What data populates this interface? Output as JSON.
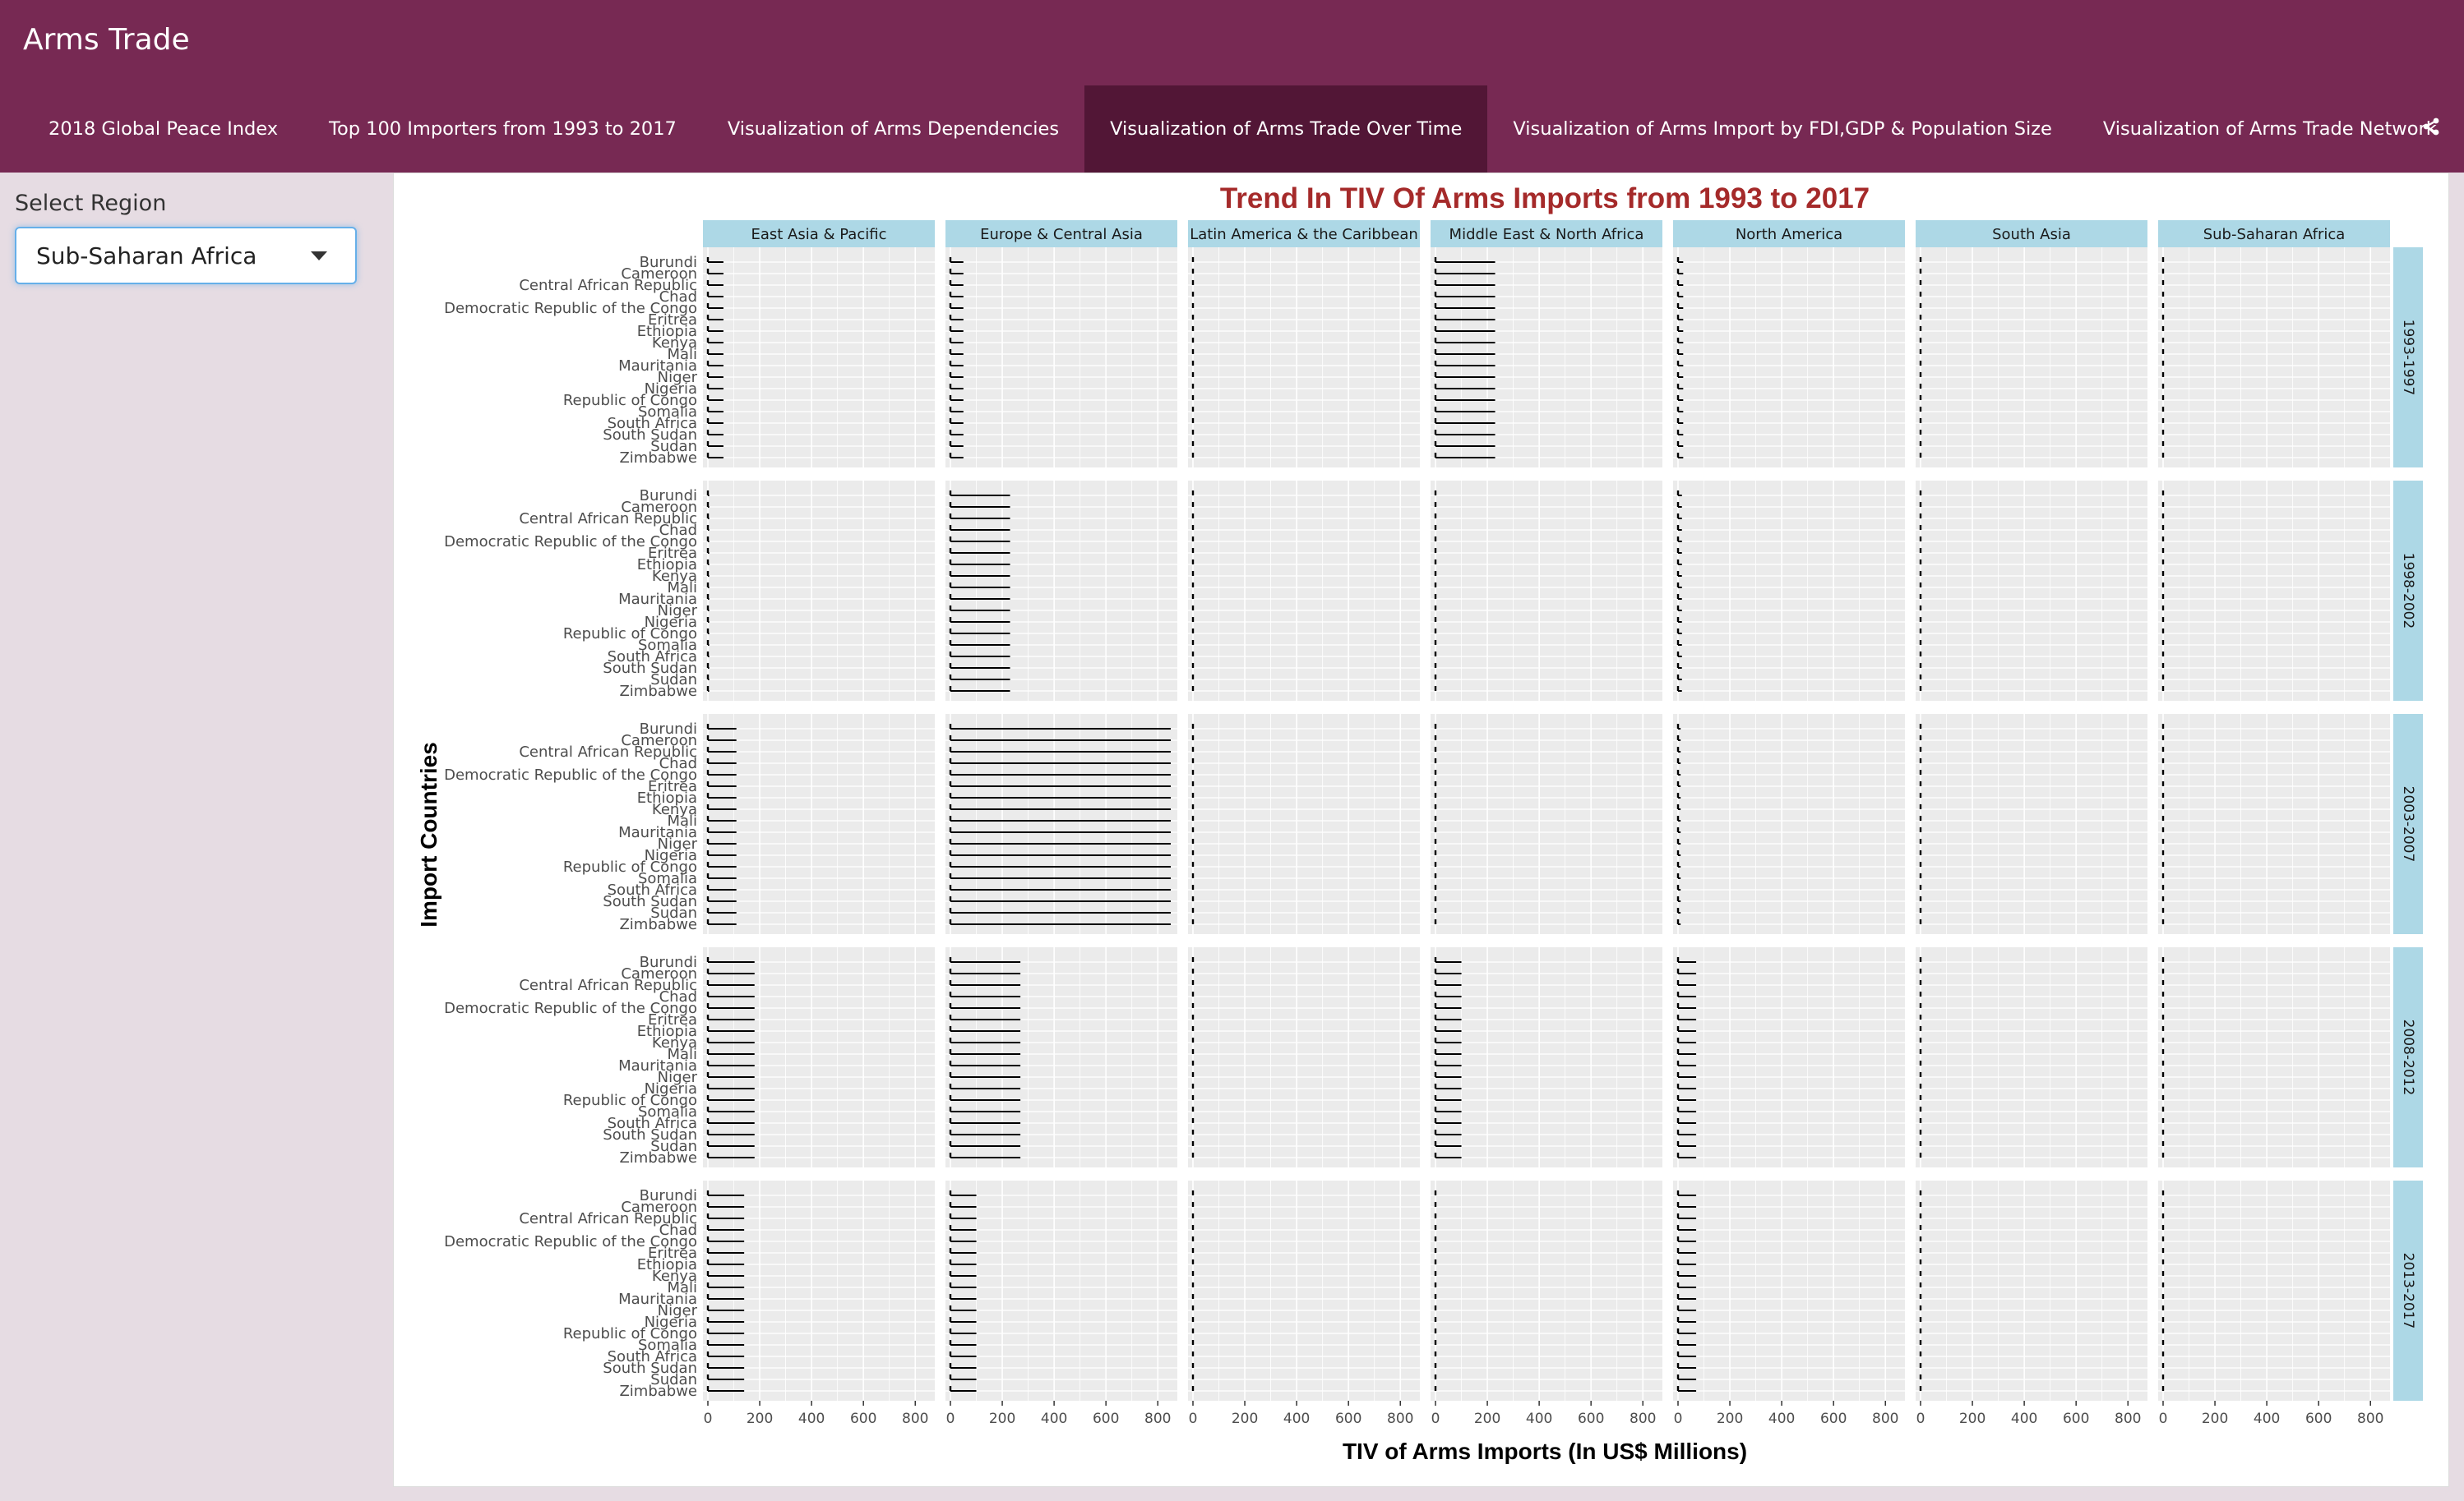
{
  "app": {
    "title": "Arms Trade"
  },
  "tabs": [
    {
      "label": "2018 Global Peace Index"
    },
    {
      "label": "Top 100 Importers from 1993 to 2017"
    },
    {
      "label": "Visualization of Arms Dependencies"
    },
    {
      "label": "Visualization of Arms Trade Over Time",
      "active": true
    },
    {
      "label": "Visualization of Arms Import by FDI,GDP & Population Size"
    },
    {
      "label": "Visualization of Arms Trade Network"
    }
  ],
  "share_icon": "share-icon",
  "sidebar": {
    "label": "Select Region",
    "selected": "Sub-Saharan Africa",
    "caret_icon": "caret-down-icon"
  },
  "colors": {
    "header": "#772953",
    "active_tab": "#521636",
    "strip": "#add8e6",
    "title": "#a52a2a",
    "panel": "#ebebeb"
  },
  "chart_data": {
    "type": "ridgeline",
    "title": "Trend In TIV Of Arms Imports from 1993 to 2017",
    "xlabel": "TIV of Arms Imports (In US$ Millions)",
    "ylabel": "Import Countries",
    "x_ticks": [
      "0",
      "200",
      "400",
      "600",
      "800"
    ],
    "xlim": [
      0,
      850
    ],
    "columns": [
      "East Asia & Pacific",
      "Europe & Central Asia",
      "Latin America & the Caribbean",
      "Middle East & North Africa",
      "North America",
      "South Asia",
      "Sub-Saharan Africa"
    ],
    "rows": [
      "1993-1997",
      "1998-2002",
      "2003-2007",
      "2008-2012",
      "2013-2017"
    ],
    "countries": [
      "Zimbabwe",
      "Sudan",
      "South Sudan",
      "South Africa",
      "Somalia",
      "Republic of Congo",
      "Nigeria",
      "Niger",
      "Mauritania",
      "Mali",
      "Kenya",
      "Ethiopia",
      "Eritrea",
      "Democratic Republic of the Congo",
      "Chad",
      "Central African Republic",
      "Cameroon",
      "Burundi"
    ],
    "line_max": [
      [
        60,
        50,
        0,
        230,
        20,
        0,
        0
      ],
      [
        5,
        230,
        0,
        0,
        15,
        0,
        0
      ],
      [
        110,
        850,
        0,
        0,
        10,
        0,
        0
      ],
      [
        180,
        270,
        0,
        100,
        70,
        0,
        0
      ],
      [
        140,
        100,
        0,
        0,
        70,
        0,
        0
      ]
    ],
    "row_extents": [
      [
        [
          0,
          5,
          3,
          4,
          0
        ],
        [
          0,
          0,
          0,
          0,
          0
        ],
        [
          5,
          7,
          7,
          0,
          6
        ],
        [
          0,
          0,
          0,
          0,
          0
        ],
        [
          0,
          0,
          0,
          0,
          0
        ],
        [
          0,
          0,
          0,
          0,
          0
        ],
        [
          0,
          0,
          0,
          0,
          0
        ]
      ],
      [
        [
          0,
          0,
          0,
          0,
          0
        ],
        [
          0,
          0,
          0,
          0,
          0
        ],
        [
          0,
          0,
          0,
          0,
          0
        ],
        [
          0,
          0,
          0,
          0,
          0
        ],
        [
          0,
          0,
          0,
          0,
          0
        ],
        [
          0,
          0,
          0,
          0,
          0
        ],
        [
          0,
          0,
          0,
          0,
          0
        ]
      ],
      [
        [
          0,
          0,
          0,
          0,
          0
        ],
        [
          0,
          0,
          0,
          0,
          0
        ],
        [
          0,
          0,
          0,
          0,
          0
        ],
        [
          0,
          0,
          0,
          0,
          0
        ],
        [
          0,
          0,
          0,
          0,
          0
        ],
        [
          0,
          0,
          0,
          0,
          0
        ],
        [
          0,
          0,
          0,
          0,
          0
        ]
      ],
      [
        [
          0,
          0,
          0,
          0,
          0
        ],
        [
          0,
          0,
          0,
          0,
          0
        ],
        [
          0,
          0,
          0,
          0,
          0
        ],
        [
          0,
          0,
          0,
          0,
          0
        ],
        [
          0,
          0,
          0,
          0,
          0
        ],
        [
          0,
          0,
          0,
          0,
          0
        ],
        [
          0,
          0,
          0,
          0,
          0
        ]
      ],
      [
        [
          0,
          0,
          0,
          0,
          0
        ],
        [
          0,
          0,
          0,
          0,
          0
        ],
        [
          0,
          0,
          0,
          0,
          0
        ],
        [
          0,
          0,
          0,
          0,
          0
        ],
        [
          0,
          0,
          0,
          0,
          0
        ],
        [
          0,
          0,
          0,
          0,
          0
        ],
        [
          0,
          0,
          0,
          0,
          0
        ]
      ]
    ]
  }
}
